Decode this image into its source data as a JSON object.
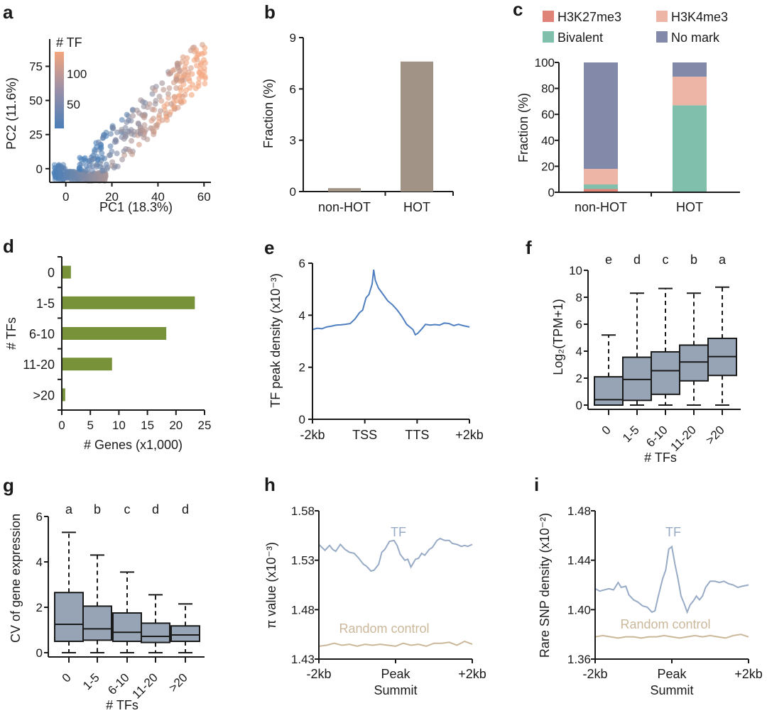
{
  "chart_data": [
    {
      "panel": "a",
      "type": "scatter",
      "xlabel": "PC1 (18.3%)",
      "ylabel": "PC2 (11.6%)",
      "xticks": [
        "0",
        "20",
        "40",
        "60"
      ],
      "yticks": [
        "0",
        "25",
        "50",
        "75"
      ],
      "xlim": [
        -7,
        63
      ],
      "ylim": [
        -10,
        95
      ],
      "colorbar": {
        "title": "# TF",
        "ticks": [
          "50",
          "100"
        ],
        "low_color": "#4a7fb8",
        "high_color": "#f3a57d"
      },
      "description": "Dense cluster near origin (PC1 -5 to 18, PC2 -8 to 10) fanning diagonally up to ~(60, 90); color increases with PC1"
    },
    {
      "panel": "b",
      "type": "bar",
      "categories": [
        "non-HOT",
        "HOT"
      ],
      "values": [
        0.2,
        7.6
      ],
      "xlabel": "",
      "ylabel": "Fraction (%)",
      "yticks": [
        "0",
        "3",
        "6",
        "9"
      ],
      "ylim": [
        0,
        9
      ],
      "color": "#a19486"
    },
    {
      "panel": "c",
      "type": "bar",
      "stacked": true,
      "categories": [
        "non-HOT",
        "HOT"
      ],
      "series": [
        {
          "name": "H3K27me3",
          "values": [
            2.5,
            0
          ],
          "color": "#df8379"
        },
        {
          "name": "Bivalent",
          "values": [
            3.5,
            67
          ],
          "color": "#7fbfab"
        },
        {
          "name": "H3K4me3",
          "values": [
            12,
            22
          ],
          "color": "#edb5a6"
        },
        {
          "name": "No mark",
          "values": [
            82,
            11
          ],
          "color": "#8389a9"
        }
      ],
      "legend": [
        "H3K27me3",
        "H3K4me3",
        "Bivalent",
        "No mark"
      ],
      "ylabel": "Fraction (%)",
      "yticks": [
        "0",
        "20",
        "40",
        "60",
        "80",
        "100"
      ],
      "ylim": [
        0,
        100
      ]
    },
    {
      "panel": "d",
      "type": "bar",
      "orientation": "horizontal",
      "categories": [
        "0",
        "1-5",
        "6-10",
        "11-20",
        ">20"
      ],
      "values": [
        1.6,
        23.3,
        18.3,
        8.8,
        0.6
      ],
      "xlabel": "# Genes (x1,000)",
      "ylabel": "# TFs",
      "xticks": [
        "0",
        "5",
        "10",
        "15",
        "20",
        "25"
      ],
      "xlim": [
        0,
        25
      ],
      "color": "#779239"
    },
    {
      "panel": "e",
      "type": "line",
      "xlabel": "",
      "ylabel": "TF peak density (x10⁻³)",
      "xticks": [
        "-2kb",
        "TSS",
        "TTS",
        "+2kb"
      ],
      "yticks": [
        "0",
        "2",
        "4",
        "6"
      ],
      "ylim": [
        0,
        6
      ],
      "series": [
        {
          "name": "TF peak density",
          "color": "#4f7fc0",
          "x": [
            0,
            0.03,
            0.06,
            0.09,
            0.12,
            0.15,
            0.18,
            0.21,
            0.24,
            0.27,
            0.3,
            0.32,
            0.34,
            0.345,
            0.36,
            0.38,
            0.39,
            0.4,
            0.42,
            0.45,
            0.48,
            0.51,
            0.54,
            0.57,
            0.6,
            0.62,
            0.64,
            0.655,
            0.67,
            0.7,
            0.72,
            0.75,
            0.78,
            0.81,
            0.84,
            0.87,
            0.9,
            0.93,
            0.96,
            1.0
          ],
          "y": [
            3.45,
            3.5,
            3.48,
            3.55,
            3.58,
            3.62,
            3.63,
            3.65,
            3.68,
            3.85,
            4.1,
            4.2,
            4.65,
            4.7,
            4.8,
            5.2,
            5.75,
            5.35,
            5.05,
            4.8,
            4.55,
            4.4,
            4.2,
            3.95,
            3.65,
            3.55,
            3.45,
            3.25,
            3.3,
            3.5,
            3.65,
            3.62,
            3.64,
            3.62,
            3.7,
            3.68,
            3.6,
            3.65,
            3.6,
            3.55
          ]
        }
      ]
    },
    {
      "panel": "f",
      "type": "box",
      "categories": [
        "0",
        "1-5",
        "6-10",
        "11-20",
        ">20"
      ],
      "xlabel": "# TFs",
      "ylabel": "Log2(TPM+1)",
      "yticks": [
        "0",
        "2",
        "4",
        "6",
        "8",
        "10"
      ],
      "ylim": [
        0,
        10
      ],
      "significance_letters": [
        "e",
        "d",
        "c",
        "b",
        "a"
      ],
      "boxes": [
        {
          "min": 0,
          "q1": 0,
          "median": 0.4,
          "q3": 2.1,
          "max": 5.2
        },
        {
          "min": 0,
          "q1": 0.35,
          "median": 1.9,
          "q3": 3.55,
          "max": 8.3
        },
        {
          "min": 0,
          "q1": 0.8,
          "median": 2.55,
          "q3": 3.95,
          "max": 8.65
        },
        {
          "min": 0,
          "q1": 1.8,
          "median": 3.2,
          "q3": 4.45,
          "max": 8.3
        },
        {
          "min": 0,
          "q1": 2.2,
          "median": 3.6,
          "q3": 4.95,
          "max": 8.75
        }
      ],
      "color": "#97a4b6"
    },
    {
      "panel": "g",
      "type": "box",
      "categories": [
        "0",
        "1-5",
        "6-10",
        "11-20",
        ">20"
      ],
      "xlabel": "# TFs",
      "ylabel": "CV of gene expression",
      "yticks": [
        "0",
        "2",
        "4",
        "6"
      ],
      "ylim": [
        0,
        6
      ],
      "significance_letters": [
        "a",
        "b",
        "c",
        "d",
        "d"
      ],
      "boxes": [
        {
          "min": 0,
          "q1": 0.5,
          "median": 1.25,
          "q3": 2.65,
          "max": 5.3
        },
        {
          "min": 0,
          "q1": 0.55,
          "median": 1.05,
          "q3": 2.05,
          "max": 4.3
        },
        {
          "min": 0,
          "q1": 0.5,
          "median": 0.9,
          "q3": 1.75,
          "max": 3.55
        },
        {
          "min": 0,
          "q1": 0.45,
          "median": 0.72,
          "q3": 1.3,
          "max": 2.55
        },
        {
          "min": 0,
          "q1": 0.5,
          "median": 0.78,
          "q3": 1.18,
          "max": 2.15
        }
      ],
      "color": "#97a4b6"
    },
    {
      "panel": "h",
      "type": "line",
      "xlabel": "Summit",
      "ylabel": "π value (x10⁻³)",
      "xticks": [
        "-2kb",
        "Peak",
        "+2kb"
      ],
      "yticks": [
        "1.43",
        "1.48",
        "1.53",
        "1.58"
      ],
      "ylim": [
        1.43,
        1.58
      ],
      "series": [
        {
          "name": "TF",
          "color": "#98abc6",
          "x": [
            0,
            0.02,
            0.04,
            0.07,
            0.09,
            0.11,
            0.14,
            0.17,
            0.2,
            0.23,
            0.26,
            0.29,
            0.31,
            0.34,
            0.36,
            0.39,
            0.41,
            0.43,
            0.46,
            0.49,
            0.51,
            0.53,
            0.56,
            0.58,
            0.6,
            0.63,
            0.65,
            0.67,
            0.69,
            0.72,
            0.74,
            0.77,
            0.79,
            0.82,
            0.85,
            0.87,
            0.9,
            0.93,
            0.95,
            0.97,
            1.0
          ],
          "y": [
            1.546,
            1.543,
            1.54,
            1.545,
            1.541,
            1.539,
            1.546,
            1.541,
            1.538,
            1.537,
            1.532,
            1.526,
            1.524,
            1.519,
            1.52,
            1.526,
            1.538,
            1.541,
            1.549,
            1.55,
            1.545,
            1.536,
            1.53,
            1.531,
            1.523,
            1.531,
            1.532,
            1.537,
            1.535,
            1.541,
            1.543,
            1.55,
            1.552,
            1.55,
            1.55,
            1.547,
            1.546,
            1.544,
            1.545,
            1.544,
            1.546
          ]
        },
        {
          "name": "Random control",
          "color": "#cbb89b",
          "x": [
            0,
            0.05,
            0.1,
            0.15,
            0.2,
            0.25,
            0.3,
            0.35,
            0.4,
            0.45,
            0.5,
            0.55,
            0.6,
            0.65,
            0.7,
            0.75,
            0.8,
            0.85,
            0.9,
            0.95,
            1.0
          ],
          "y": [
            1.443,
            1.444,
            1.446,
            1.444,
            1.445,
            1.443,
            1.445,
            1.444,
            1.445,
            1.444,
            1.443,
            1.446,
            1.444,
            1.445,
            1.443,
            1.446,
            1.446,
            1.447,
            1.444,
            1.448,
            1.445
          ]
        }
      ],
      "annotations": [
        "TF",
        "Random control"
      ]
    },
    {
      "panel": "i",
      "type": "line",
      "xlabel": "Summit",
      "ylabel": "Rare SNP density (x10⁻²)",
      "xticks": [
        "-2kb",
        "Peak",
        "+2kb"
      ],
      "yticks": [
        "1.36",
        "1.40",
        "1.44",
        "1.48"
      ],
      "ylim": [
        1.36,
        1.48
      ],
      "series": [
        {
          "name": "TF",
          "color": "#98abc6",
          "x": [
            0,
            0.03,
            0.06,
            0.09,
            0.12,
            0.15,
            0.17,
            0.2,
            0.22,
            0.25,
            0.28,
            0.31,
            0.34,
            0.37,
            0.39,
            0.41,
            0.44,
            0.46,
            0.48,
            0.5,
            0.52,
            0.54,
            0.56,
            0.58,
            0.6,
            0.62,
            0.64,
            0.66,
            0.68,
            0.7,
            0.72,
            0.75,
            0.78,
            0.81,
            0.84,
            0.87,
            0.9,
            0.93,
            0.96,
            1.0
          ],
          "y": [
            1.417,
            1.415,
            1.416,
            1.417,
            1.416,
            1.422,
            1.418,
            1.419,
            1.412,
            1.408,
            1.406,
            1.403,
            1.402,
            1.398,
            1.399,
            1.41,
            1.425,
            1.432,
            1.449,
            1.451,
            1.437,
            1.425,
            1.411,
            1.405,
            1.398,
            1.404,
            1.407,
            1.411,
            1.408,
            1.411,
            1.418,
            1.423,
            1.423,
            1.422,
            1.423,
            1.421,
            1.42,
            1.418,
            1.419,
            1.42
          ]
        },
        {
          "name": "Random control",
          "color": "#cbb89b",
          "x": [
            0,
            0.05,
            0.1,
            0.15,
            0.2,
            0.25,
            0.3,
            0.35,
            0.4,
            0.45,
            0.5,
            0.55,
            0.6,
            0.65,
            0.7,
            0.75,
            0.8,
            0.85,
            0.9,
            0.95,
            1.0
          ],
          "y": [
            1.378,
            1.379,
            1.378,
            1.377,
            1.378,
            1.378,
            1.377,
            1.378,
            1.378,
            1.379,
            1.378,
            1.377,
            1.378,
            1.379,
            1.378,
            1.379,
            1.378,
            1.377,
            1.379,
            1.38,
            1.378
          ]
        }
      ],
      "annotations": [
        "TF",
        "Random control"
      ]
    }
  ]
}
